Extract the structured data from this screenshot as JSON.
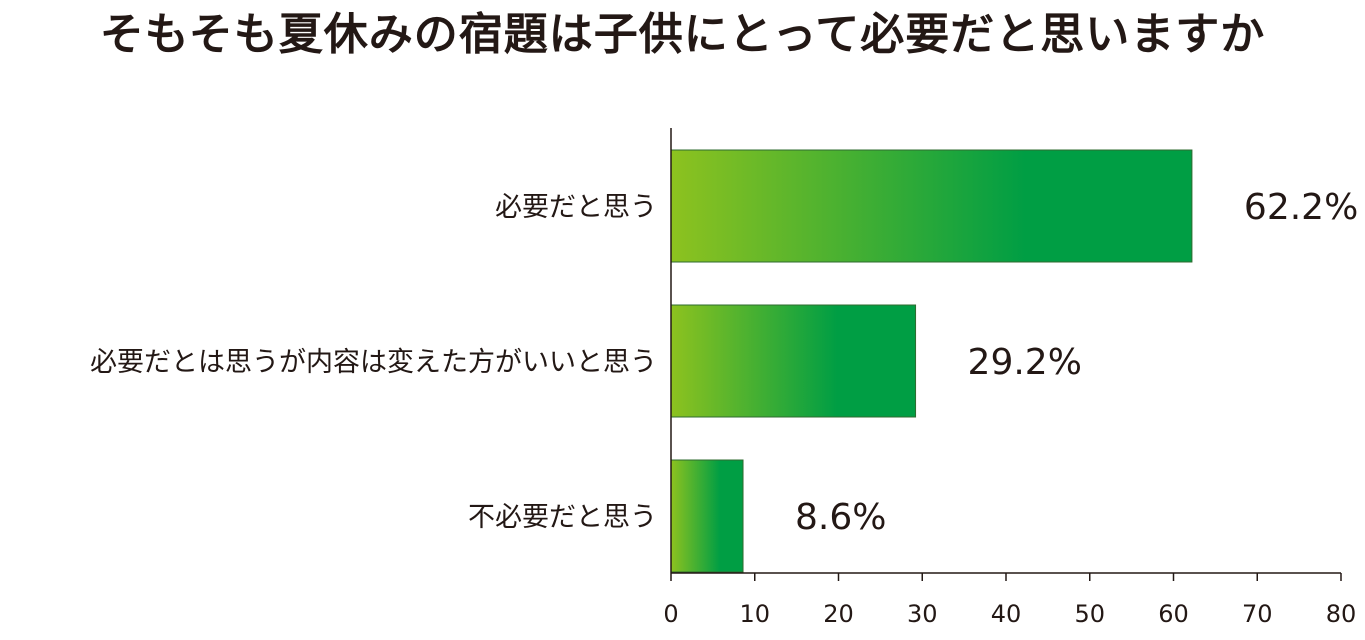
{
  "title": "そもそも夏休みの宿題は子供にとって必要だと思いますか",
  "chart_data": {
    "type": "bar",
    "orientation": "horizontal",
    "title": "そもそも夏休みの宿題は子供にとって必要だと思いますか",
    "categories": [
      "必要だと思う",
      "必要だとは思うが内容は変えた方がいいと思う",
      "不必要だと思う"
    ],
    "values": [
      62.2,
      29.2,
      8.6
    ],
    "data_labels": [
      "62.2%",
      "29.2%",
      "8.6%"
    ],
    "xlim": [
      0,
      80
    ],
    "xticks": [
      0,
      10,
      20,
      30,
      40,
      50,
      60,
      70,
      80
    ],
    "grid": false,
    "legend": "none",
    "colors": {
      "gradient_start": "#8DC21F",
      "gradient_end": "#009E44",
      "axis": "#231815"
    }
  }
}
